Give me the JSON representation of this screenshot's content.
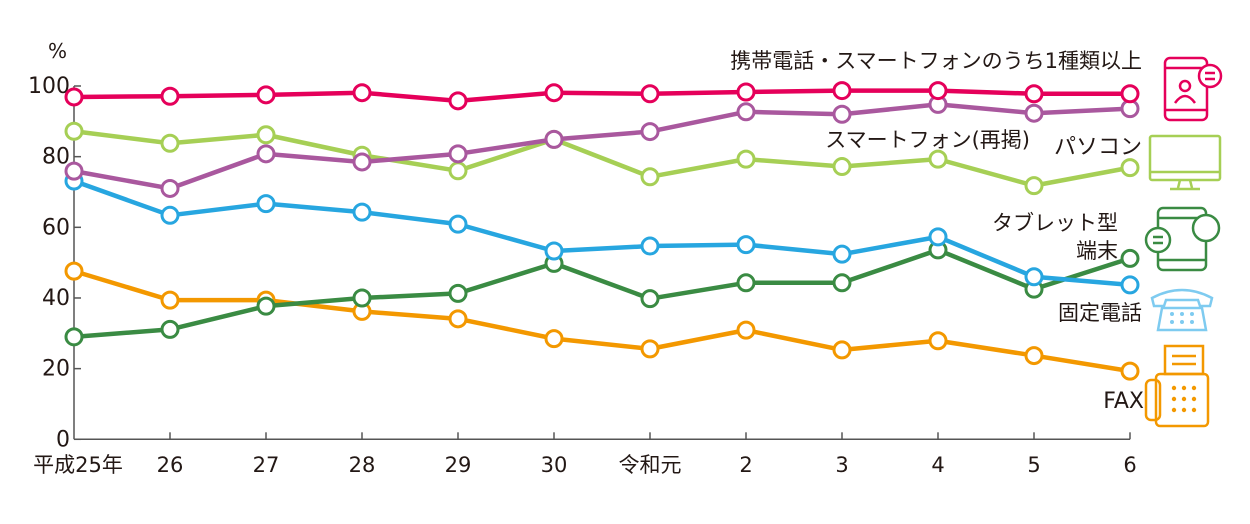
{
  "chart_data": {
    "type": "line",
    "ylabel": "%",
    "ylim": [
      0,
      100
    ],
    "yticks": [
      0,
      20,
      40,
      60,
      80,
      100
    ],
    "categories": [
      "平成25年",
      "26",
      "27",
      "28",
      "29",
      "30",
      "令和元",
      "2",
      "3",
      "4",
      "5",
      "6"
    ],
    "grid": false,
    "series": [
      {
        "name": "携帯電話・スマートフォンのうち1種類以上",
        "color": "#e5005a",
        "icon": "smartphone-chat-icon",
        "values": [
          96.9,
          97.1,
          97.5,
          98.1,
          95.8,
          98.1,
          97.8,
          98.3,
          98.7,
          98.7,
          97.8,
          97.8
        ]
      },
      {
        "name": "スマートフォン(再掲)",
        "color": "#a9589e",
        "icon": "",
        "values": [
          75.9,
          71.0,
          80.8,
          78.5,
          80.8,
          84.9,
          87.1,
          92.7,
          92.0,
          94.8,
          92.3,
          93.6
        ]
      },
      {
        "name": "パソコン",
        "color": "#a6cf55",
        "icon": "monitor-icon",
        "values": [
          87.2,
          83.8,
          86.2,
          80.4,
          76.0,
          84.9,
          74.3,
          79.3,
          77.2,
          79.3,
          71.8,
          76.9
        ]
      },
      {
        "name": "タブレット型端末",
        "name_lines": [
          "タブレット型",
          "端末"
        ],
        "color": "#3a8b43",
        "icon": "tablet-chat-icon",
        "values": [
          29.0,
          31.1,
          37.7,
          40.0,
          41.3,
          49.8,
          39.8,
          44.3,
          44.3,
          53.6,
          42.5,
          51.2
        ]
      },
      {
        "name": "固定電話",
        "color": "#27a6e0",
        "icon": "telephone-icon",
        "values": [
          73.1,
          63.4,
          66.7,
          64.3,
          60.9,
          53.3,
          54.7,
          55.1,
          52.4,
          57.3,
          46.0,
          43.7
        ]
      },
      {
        "name": "FAX",
        "color": "#f39800",
        "icon": "fax-icon",
        "values": [
          47.6,
          39.4,
          39.4,
          36.2,
          34.1,
          28.5,
          25.6,
          30.9,
          25.3,
          27.9,
          23.7,
          19.3
        ]
      }
    ]
  }
}
